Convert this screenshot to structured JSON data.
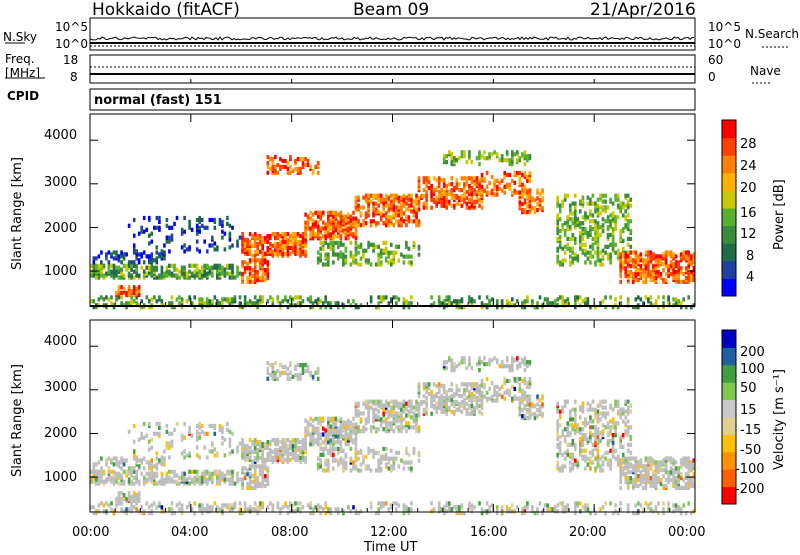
{
  "header": {
    "station": "Hokkaido (fitACF)",
    "beam": "Beam 09",
    "date": "21/Apr/2016"
  },
  "strip": {
    "nsky_label": "N.Sky",
    "nsky_ticks": [
      "10^5",
      "10^0"
    ],
    "nsearch_label": "N.Search",
    "nsearch_ticks": [
      "10^5",
      "10^0"
    ],
    "freq_label": "Freq.",
    "freq_unit": "[MHz]",
    "freq_ticks": [
      "18",
      "8"
    ],
    "nave_label": "Nave",
    "nave_ticks": [
      "60",
      "0"
    ],
    "cpid_label": "CPID",
    "cpid_value": "normal (fast) 151"
  },
  "colors": {
    "power_scale": [
      "#0000ff",
      "#2040a0",
      "#1f6b4a",
      "#3a8c3a",
      "#58b030",
      "#c8c800",
      "#ffb000",
      "#ff8000",
      "#ff4000",
      "#ff0000"
    ],
    "velocity_scale": [
      "#ff0000",
      "#ff6000",
      "#ff9000",
      "#ffc000",
      "#e0d090",
      "#c8c8c8",
      "#80c850",
      "#40a040",
      "#2060a0",
      "#0000c0"
    ],
    "ground_scatter": "#bebebe"
  },
  "chart_data": [
    {
      "type": "heatmap",
      "title": "",
      "ylabel": "Slant Range [km]",
      "xlabel": "",
      "ylim": [
        200,
        4600
      ],
      "y_ticks": [
        "4000",
        "3000",
        "2000",
        "1000"
      ],
      "x_range_hours": [
        0,
        24
      ],
      "colorbar": {
        "label": "Power [dB]",
        "ticks": [
          "28",
          "24",
          "20",
          "16",
          "12",
          "8",
          "4"
        ],
        "range": [
          0,
          32
        ]
      }
    },
    {
      "type": "heatmap",
      "title": "",
      "ylabel": "Slant Range [km]",
      "xlabel": "Time UT",
      "ylim": [
        200,
        4600
      ],
      "y_ticks": [
        "4000",
        "3000",
        "2000",
        "1000"
      ],
      "x_ticks": [
        "00:00",
        "04:00",
        "08:00",
        "12:00",
        "16:00",
        "20:00",
        "00:00"
      ],
      "x_range_hours": [
        0,
        24
      ],
      "colorbar": {
        "label": "Velocity [m s⁻¹]",
        "ticks": [
          "200",
          "100",
          "50",
          "15",
          "-15",
          "-50",
          "-100",
          "-200"
        ],
        "range": [
          -250,
          250
        ]
      }
    }
  ]
}
